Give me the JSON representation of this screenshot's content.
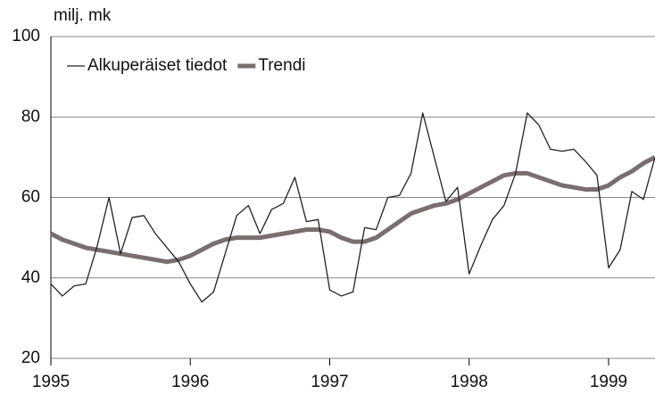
{
  "chart_data": {
    "type": "line",
    "y_axis_label": "milj. mk",
    "x": [
      1995,
      1995.083,
      1995.167,
      1995.25,
      1995.333,
      1995.417,
      1995.5,
      1995.583,
      1995.667,
      1995.75,
      1995.833,
      1995.917,
      1996,
      1996.083,
      1996.167,
      1996.25,
      1996.333,
      1996.417,
      1996.5,
      1996.583,
      1996.667,
      1996.75,
      1996.833,
      1996.917,
      1997,
      1997.083,
      1997.167,
      1997.25,
      1997.333,
      1997.417,
      1997.5,
      1997.583,
      1997.667,
      1997.75,
      1997.833,
      1997.917,
      1998,
      1998.083,
      1998.167,
      1998.25,
      1998.333,
      1998.417,
      1998.5,
      1998.583,
      1998.667,
      1998.75,
      1998.833,
      1998.917,
      1999,
      1999.083,
      1999.167,
      1999.25,
      1999.333
    ],
    "series": [
      {
        "name": "Alkuperäiset tiedot",
        "color": "#222222",
        "values": [
          38.5,
          35.5,
          38,
          38.5,
          48,
          60,
          46,
          55,
          55.5,
          51,
          47.5,
          44,
          38.5,
          34,
          36.5,
          46,
          55.5,
          58,
          51,
          57,
          58.5,
          65,
          54,
          54.5,
          37,
          35.5,
          36.5,
          52.5,
          52,
          60,
          60.5,
          66,
          81,
          70,
          59,
          62.5,
          41,
          48,
          54.5,
          58,
          66,
          81,
          78,
          72,
          71.5,
          72,
          69,
          65.5,
          42.5,
          47,
          61.5,
          59.5,
          70
        ]
      },
      {
        "name": "Trendi",
        "color": "#7a6e6e",
        "values": [
          51,
          49.5,
          48.5,
          47.5,
          47,
          46.5,
          46,
          45.5,
          45,
          44.5,
          44,
          44.5,
          45.5,
          47,
          48.5,
          49.5,
          50,
          50,
          50,
          50.5,
          51,
          51.5,
          52,
          52,
          51.5,
          50,
          49,
          49,
          50,
          52,
          54,
          56,
          57,
          58,
          58.5,
          59.5,
          61,
          62.5,
          64,
          65.5,
          66,
          66,
          65,
          64,
          63,
          62.5,
          62,
          62,
          63,
          65,
          66.5,
          68.5,
          70
        ]
      }
    ],
    "xlim": [
      1995,
      1999.333
    ],
    "xticks": [
      1995,
      1996,
      1997,
      1998,
      1999
    ],
    "ylim": [
      20,
      100
    ],
    "yticks": [
      20,
      40,
      60,
      80,
      100
    ],
    "grid": true,
    "legend": "top-left"
  }
}
